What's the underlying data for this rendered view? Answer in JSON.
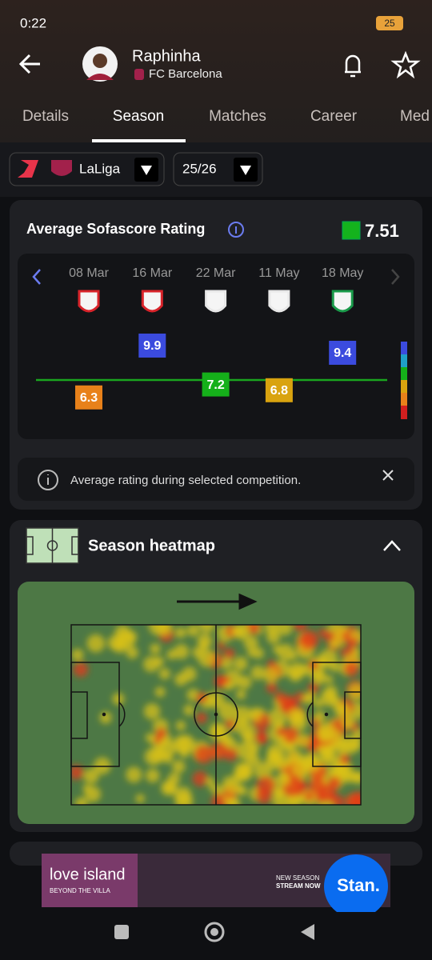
{
  "status": {
    "time": "0:22",
    "battery": "25"
  },
  "header": {
    "name": "Raphinha",
    "team": "FC Barcelona"
  },
  "tabs": [
    "Details",
    "Season",
    "Matches",
    "Career",
    "Med"
  ],
  "filters": {
    "league": "LaLiga",
    "season": "25/26"
  },
  "rating_card": {
    "title": "Average Sofascore Rating",
    "average": 7.51,
    "matches": [
      {
        "date": "08 Mar",
        "rating": 6.3
      },
      {
        "date": "16 Mar",
        "rating": 9.9
      },
      {
        "date": "22 Mar",
        "rating": 7.2
      },
      {
        "date": "11 May",
        "rating": 6.8
      },
      {
        "date": "18 May",
        "rating": 9.4
      }
    ],
    "info": "Average rating during selected competition."
  },
  "heatmap_card": {
    "title": "Season heatmap"
  },
  "ad": {
    "brand": "love island",
    "tagline": "BEYOND THE VILLA",
    "line1": "NEW SEASON",
    "line2": "STREAM NOW",
    "service": "Stan."
  }
}
